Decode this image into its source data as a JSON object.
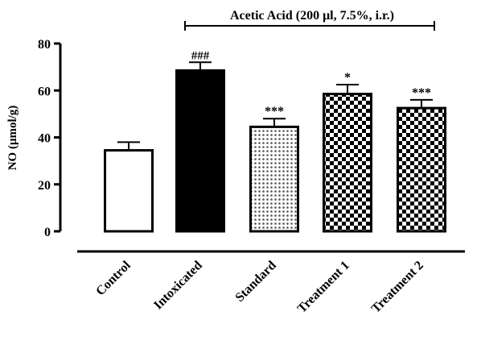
{
  "chart_data": {
    "type": "bar",
    "title": "",
    "bracket_label": "Acetic Acid (200 μl, 7.5%, i.r.)",
    "ylabel": "NO (μmol/g)",
    "xlabel": "",
    "ylim": [
      0,
      80
    ],
    "yticks": [
      "0",
      "20",
      "40",
      "60",
      "80"
    ],
    "grid": false,
    "categories": [
      "Control",
      "Intoxicated",
      "Standard",
      "Treatment 1",
      "Treatment 2"
    ],
    "values": [
      34.5,
      68.5,
      44.5,
      58.5,
      52.5
    ],
    "errors": [
      3.5,
      3.5,
      3.5,
      4,
      3.5
    ],
    "significance": [
      "",
      "###",
      "***",
      "*",
      "***"
    ],
    "fills": [
      "white",
      "black",
      "dots",
      "checker",
      "checker"
    ]
  }
}
